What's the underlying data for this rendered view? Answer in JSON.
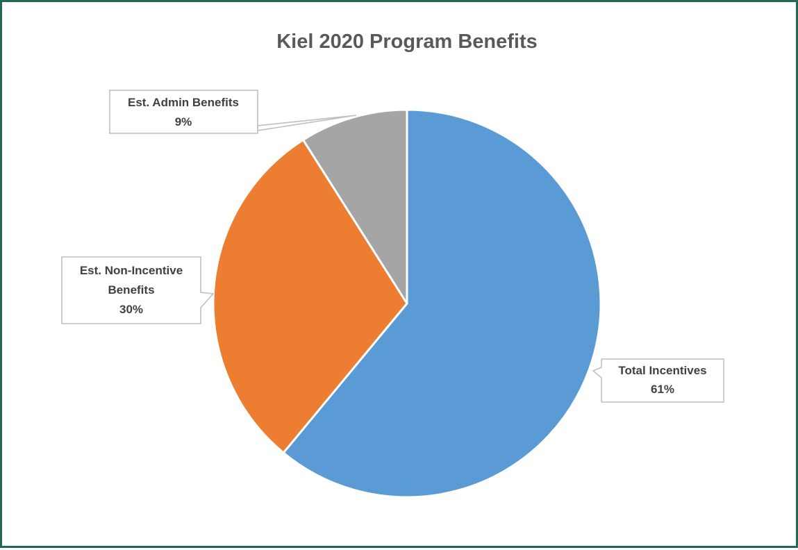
{
  "chart_data": {
    "type": "pie",
    "title": "Kiel 2020 Program Benefits",
    "start_angle_deg": 0,
    "direction": "clockwise",
    "slices": [
      {
        "category": "Total Incentives",
        "percent_label": "61%",
        "value": 61,
        "color": "#5b9bd5"
      },
      {
        "category": "Est. Non-Incentive Benefits",
        "percent_label": "30%",
        "value": 30,
        "color": "#ed7d31"
      },
      {
        "category": "Est. Admin Benefits",
        "percent_label": "9%",
        "value": 9,
        "color": "#a5a5a5"
      }
    ],
    "slice_border_color": "#ffffff",
    "legend": "none",
    "data_labels": "callouts"
  }
}
